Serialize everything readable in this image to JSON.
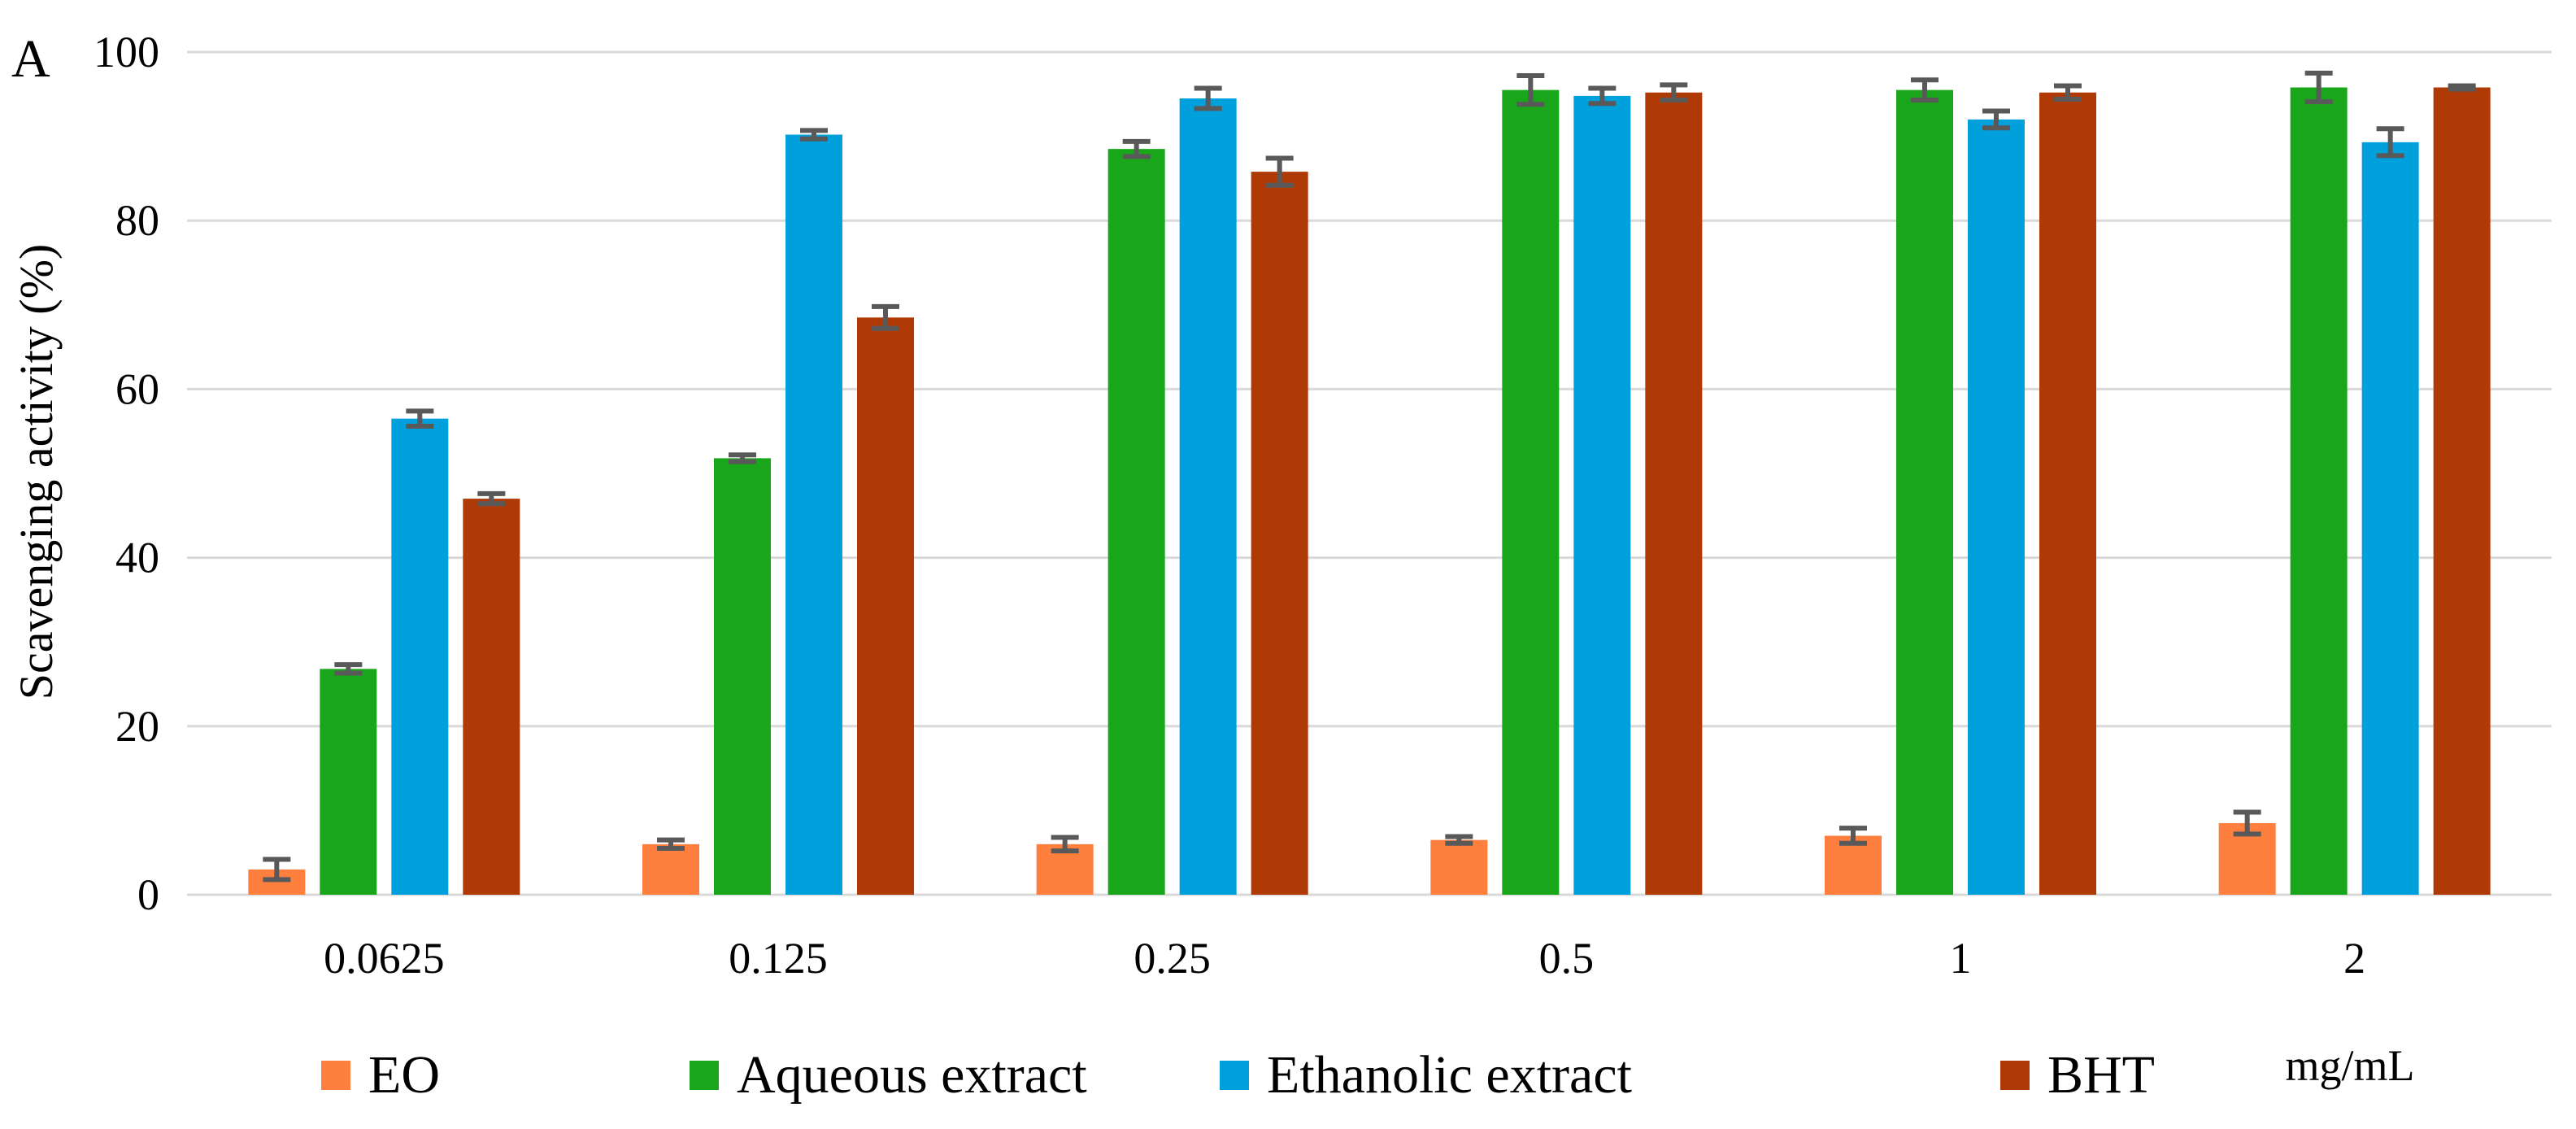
{
  "panel_label": "A",
  "chart_data": {
    "type": "bar",
    "title": "",
    "xlabel": "mg/mL",
    "ylabel": "Scavenging activity (%)",
    "ylim": [
      0,
      100
    ],
    "yticks": [
      "0",
      "20",
      "40",
      "60",
      "80",
      "100"
    ],
    "categories": [
      "0.0625",
      "0.125",
      "0.25",
      "0.5",
      "1",
      "2"
    ],
    "grid": true,
    "legend_position": "bottom",
    "series": [
      {
        "name": "EO",
        "color": "#FF7F3F",
        "values": [
          3,
          6,
          6,
          6.5,
          7,
          8.5
        ],
        "errors": [
          1.2,
          0.5,
          0.8,
          0.4,
          0.9,
          1.3
        ]
      },
      {
        "name": "Aqueous extract",
        "color": "#1AA61A",
        "values": [
          26.8,
          51.8,
          88.5,
          95.5,
          95.5,
          95.8
        ],
        "errors": [
          0.5,
          0.4,
          0.9,
          1.7,
          1.2,
          1.7
        ]
      },
      {
        "name": "Ethanolic extract",
        "color": "#00A0DC",
        "values": [
          56.5,
          90.2,
          94.5,
          94.8,
          92,
          89.3
        ],
        "errors": [
          0.9,
          0.5,
          1.2,
          0.9,
          1.0,
          1.6
        ]
      },
      {
        "name": "BHT",
        "color": "#B03A05",
        "values": [
          47,
          68.5,
          85.8,
          95.2,
          95.2,
          95.8
        ],
        "errors": [
          0.6,
          1.3,
          1.6,
          0.9,
          0.8,
          0.2
        ]
      }
    ]
  }
}
